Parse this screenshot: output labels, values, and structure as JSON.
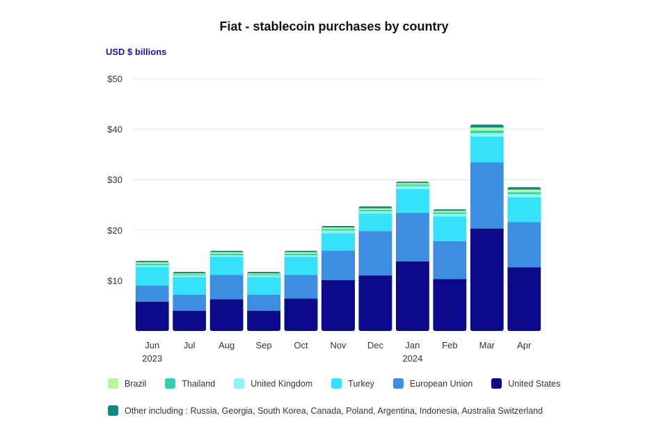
{
  "chart_data": {
    "type": "bar",
    "stacked": true,
    "title": "Fiat - stablecoin purchases by country",
    "ylabel": "USD $ billions",
    "ylim": [
      0,
      50
    ],
    "yticks": [
      {
        "value": 10,
        "label": "$10"
      },
      {
        "value": 20,
        "label": "$20"
      },
      {
        "value": 30,
        "label": "$30"
      },
      {
        "value": 40,
        "label": "$40"
      },
      {
        "value": 50,
        "label": "$50"
      }
    ],
    "categories": [
      "Jun",
      "Jul",
      "Aug",
      "Sep",
      "Oct",
      "Nov",
      "Dec",
      "Jan",
      "Feb",
      "Mar",
      "Apr"
    ],
    "year_labels": [
      {
        "index": 0,
        "label": "2023"
      },
      {
        "index": 7,
        "label": "2024"
      }
    ],
    "series": [
      {
        "name": "United States",
        "color": "#0a0a8a",
        "values": [
          5.8,
          4.0,
          6.3,
          4.0,
          6.4,
          10.1,
          11.0,
          13.8,
          10.3,
          20.3,
          12.6
        ]
      },
      {
        "name": "European Union",
        "color": "#3d8ee0",
        "values": [
          3.2,
          3.2,
          4.8,
          3.2,
          4.7,
          5.8,
          8.8,
          9.6,
          7.5,
          13.1,
          9.0
        ]
      },
      {
        "name": "Turkey",
        "color": "#36e2fa",
        "values": [
          3.7,
          3.5,
          3.6,
          3.5,
          3.6,
          3.5,
          3.5,
          4.7,
          4.9,
          5.1,
          4.9
        ]
      },
      {
        "name": "United Kingdom",
        "color": "#8ff7ea",
        "values": [
          0.3,
          0.3,
          0.3,
          0.3,
          0.3,
          0.5,
          0.4,
          0.6,
          0.5,
          0.7,
          0.6
        ]
      },
      {
        "name": "Thailand",
        "color": "#2fd1b0",
        "values": [
          0.3,
          0.2,
          0.3,
          0.2,
          0.3,
          0.3,
          0.3,
          0.3,
          0.3,
          0.5,
          0.4
        ]
      },
      {
        "name": "Brazil",
        "color": "#b8f5a0",
        "values": [
          0.3,
          0.2,
          0.3,
          0.2,
          0.3,
          0.3,
          0.3,
          0.3,
          0.3,
          0.6,
          0.5
        ]
      },
      {
        "name": "Other including : Russia, Georgia, South Korea, Canada, Poland, Argentina, Indonesia, Australia Switzerland",
        "color": "#0e8a80",
        "values": [
          0.3,
          0.3,
          0.3,
          0.3,
          0.3,
          0.3,
          0.4,
          0.3,
          0.3,
          0.6,
          0.5
        ]
      }
    ],
    "legend": {
      "row1": [
        "Brazil",
        "Thailand",
        "United Kingdom",
        "Turkey",
        "European Union",
        "United States"
      ],
      "row2": [
        "Other including : Russia, Georgia, South Korea, Canada, Poland, Argentina, Indonesia, Australia Switzerland"
      ],
      "placement": "bottom"
    },
    "grid": true
  }
}
